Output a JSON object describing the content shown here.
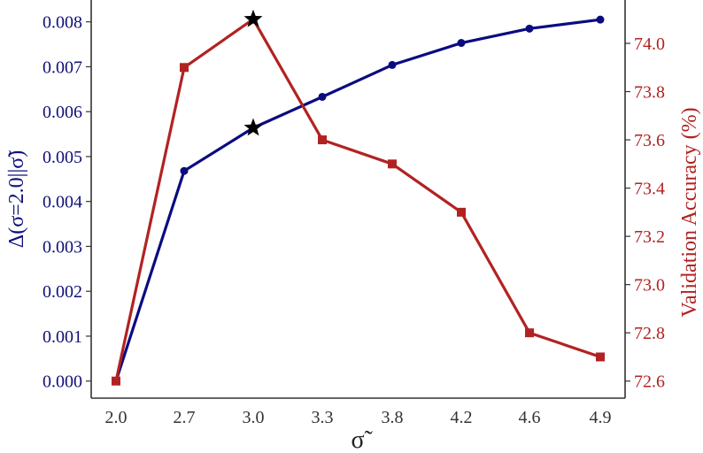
{
  "chart_data": {
    "type": "line",
    "title": "",
    "xlabel": "σ̃",
    "ylabel_left": "Δ(σ=2.0||σ̃)",
    "ylabel_right": "Validation Accuracy (%)",
    "categories": [
      "2.0",
      "2.7",
      "3.0",
      "3.3",
      "3.8",
      "4.2",
      "4.6",
      "4.9"
    ],
    "series": [
      {
        "name": "Δ(σ=2.0||σ̃)",
        "axis": "left",
        "color": "#0b0b80",
        "marker": "circle",
        "values": [
          0.0,
          0.00468,
          0.00564,
          0.00633,
          0.00704,
          0.00753,
          0.00785,
          0.00805
        ],
        "highlight_index": 2
      },
      {
        "name": "Validation Accuracy (%)",
        "axis": "right",
        "color": "#b22222",
        "marker": "square",
        "values": [
          72.6,
          73.9,
          74.1,
          73.6,
          73.5,
          73.3,
          72.8,
          72.7
        ],
        "highlight_index": 2
      }
    ],
    "highlight_marker": "star",
    "y_left_ticks": [
      "0.000",
      "0.001",
      "0.002",
      "0.003",
      "0.004",
      "0.005",
      "0.006",
      "0.007",
      "0.008"
    ],
    "y_right_ticks": [
      "72.6",
      "72.8",
      "73.0",
      "73.2",
      "73.4",
      "73.6",
      "73.8",
      "74.0"
    ],
    "ylim_left": [
      -0.00039,
      0.00847
    ],
    "ylim_right": [
      72.53,
      74.18
    ],
    "grid": false,
    "legend": "none"
  }
}
